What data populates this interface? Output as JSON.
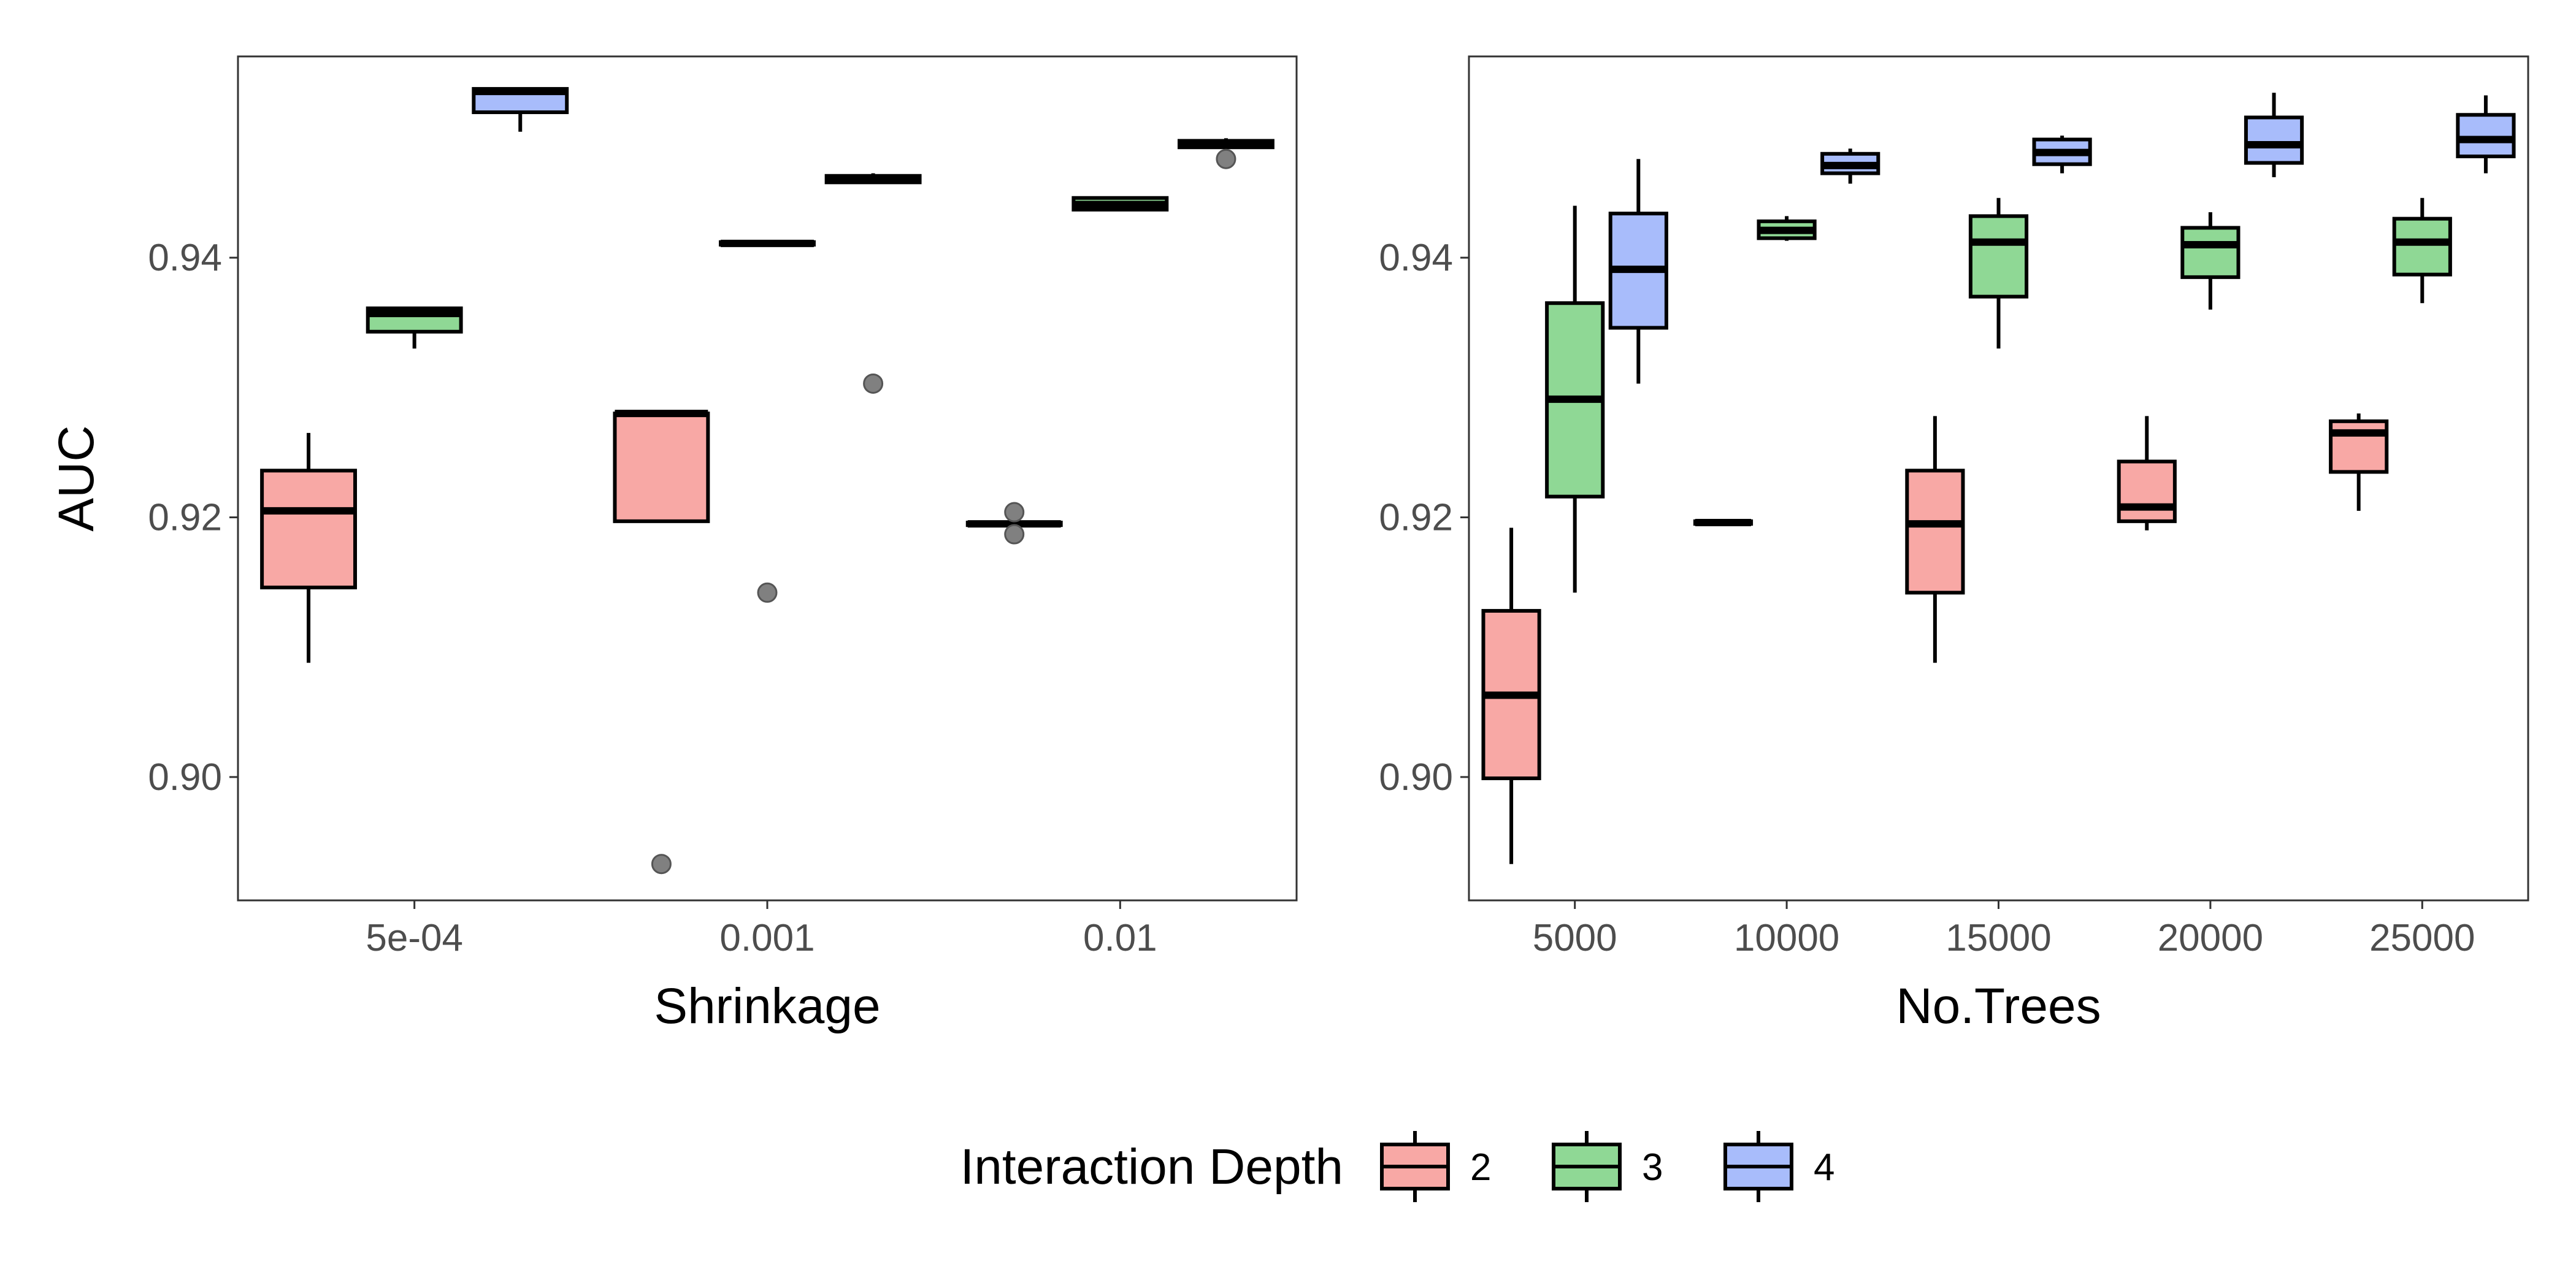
{
  "chart_data": [
    {
      "type": "box",
      "xlabel": "Shrinkage",
      "ylabel": "AUC",
      "categories": [
        "5e-04",
        "0.001",
        "0.01"
      ],
      "ylim": [
        0.8905,
        0.9555
      ],
      "yticks": [
        0.9,
        0.92,
        0.94
      ],
      "ytick_labels": [
        "0.90",
        "0.92",
        "0.94"
      ],
      "series": [
        {
          "name": "2",
          "boxes": [
            {
              "min": 0.9088,
              "q1": 0.9146,
              "median": 0.9205,
              "q3": 0.9236,
              "max": 0.9265,
              "outliers": []
            },
            {
              "min": 0.9197,
              "q1": 0.9197,
              "median": 0.928,
              "q3": 0.928,
              "max": 0.928,
              "outliers": [
                0.8933
              ]
            },
            {
              "min": 0.9194,
              "q1": 0.9194,
              "median": 0.9195,
              "q3": 0.9196,
              "max": 0.9196,
              "outliers": [
                0.9204,
                0.9187
              ]
            }
          ]
        },
        {
          "name": "3",
          "boxes": [
            {
              "min": 0.933,
              "q1": 0.9343,
              "median": 0.9357,
              "q3": 0.9361,
              "max": 0.9361,
              "outliers": []
            },
            {
              "min": 0.941,
              "q1": 0.941,
              "median": 0.9411,
              "q3": 0.9412,
              "max": 0.9412,
              "outliers": [
                0.9142
              ]
            },
            {
              "min": 0.9437,
              "q1": 0.9437,
              "median": 0.9441,
              "q3": 0.9446,
              "max": 0.9446,
              "outliers": []
            }
          ]
        },
        {
          "name": "4",
          "boxes": [
            {
              "min": 0.9497,
              "q1": 0.9512,
              "median": 0.9528,
              "q3": 0.953,
              "max": 0.953,
              "outliers": []
            },
            {
              "min": 0.9457,
              "q1": 0.9458,
              "median": 0.946,
              "q3": 0.9463,
              "max": 0.9465,
              "outliers": [
                0.9303
              ]
            },
            {
              "min": 0.9484,
              "q1": 0.9485,
              "median": 0.9487,
              "q3": 0.949,
              "max": 0.9492,
              "outliers": [
                0.9476
              ]
            }
          ]
        }
      ]
    },
    {
      "type": "box",
      "xlabel": "No.Trees",
      "ylabel": "",
      "categories": [
        "5000",
        "10000",
        "15000",
        "20000",
        "25000"
      ],
      "ylim": [
        0.8905,
        0.9555
      ],
      "yticks": [
        0.9,
        0.92,
        0.94
      ],
      "ytick_labels": [
        "0.90",
        "0.92",
        "0.94"
      ],
      "series": [
        {
          "name": "2",
          "boxes": [
            {
              "min": 0.8933,
              "q1": 0.8999,
              "median": 0.9063,
              "q3": 0.9128,
              "max": 0.9192,
              "outliers": []
            },
            {
              "min": 0.9194,
              "q1": 0.9195,
              "median": 0.9196,
              "q3": 0.9197,
              "max": 0.9197,
              "outliers": []
            },
            {
              "min": 0.9088,
              "q1": 0.9142,
              "median": 0.9195,
              "q3": 0.9236,
              "max": 0.9278,
              "outliers": []
            },
            {
              "min": 0.919,
              "q1": 0.9197,
              "median": 0.9208,
              "q3": 0.9243,
              "max": 0.9278,
              "outliers": []
            },
            {
              "min": 0.9205,
              "q1": 0.9235,
              "median": 0.9265,
              "q3": 0.9274,
              "max": 0.928,
              "outliers": []
            }
          ]
        },
        {
          "name": "3",
          "boxes": [
            {
              "min": 0.9142,
              "q1": 0.9216,
              "median": 0.9291,
              "q3": 0.9365,
              "max": 0.944,
              "outliers": []
            },
            {
              "min": 0.9413,
              "q1": 0.9415,
              "median": 0.9421,
              "q3": 0.9428,
              "max": 0.9432,
              "outliers": []
            },
            {
              "min": 0.933,
              "q1": 0.937,
              "median": 0.9412,
              "q3": 0.9432,
              "max": 0.9446,
              "outliers": []
            },
            {
              "min": 0.936,
              "q1": 0.9385,
              "median": 0.941,
              "q3": 0.9423,
              "max": 0.9435,
              "outliers": []
            },
            {
              "min": 0.9365,
              "q1": 0.9387,
              "median": 0.9412,
              "q3": 0.943,
              "max": 0.9446,
              "outliers": []
            }
          ]
        },
        {
          "name": "4",
          "boxes": [
            {
              "min": 0.9303,
              "q1": 0.9346,
              "median": 0.9391,
              "q3": 0.9434,
              "max": 0.9476,
              "outliers": []
            },
            {
              "min": 0.9457,
              "q1": 0.9465,
              "median": 0.9471,
              "q3": 0.948,
              "max": 0.9484,
              "outliers": []
            },
            {
              "min": 0.9465,
              "q1": 0.9472,
              "median": 0.9481,
              "q3": 0.9491,
              "max": 0.9494,
              "outliers": []
            },
            {
              "min": 0.9462,
              "q1": 0.9473,
              "median": 0.9487,
              "q3": 0.9508,
              "max": 0.9527,
              "outliers": []
            },
            {
              "min": 0.9465,
              "q1": 0.9478,
              "median": 0.9491,
              "q3": 0.951,
              "max": 0.9525,
              "outliers": []
            }
          ]
        }
      ]
    }
  ],
  "legend": {
    "title": "Interaction Depth",
    "placement": "bottom",
    "items": [
      {
        "label": "2",
        "color": "#F8A8A5"
      },
      {
        "label": "3",
        "color": "#8FD895"
      },
      {
        "label": "4",
        "color": "#A8BCFB"
      }
    ]
  },
  "colors": {
    "series": [
      "#F8A8A5",
      "#8FD895",
      "#A8BCFB"
    ],
    "outlier": "#808080",
    "stroke": "#000000"
  }
}
